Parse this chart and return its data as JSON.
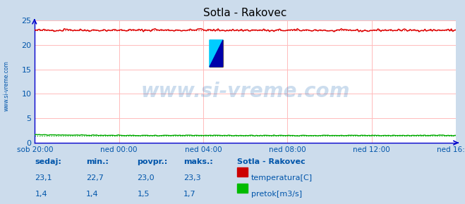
{
  "title": "Sotla - Rakovec",
  "bg_color": "#ccdcec",
  "plot_bg_color": "#ffffff",
  "grid_color": "#ffbbbb",
  "x_labels": [
    "sob 20:00",
    "ned 00:00",
    "ned 04:00",
    "ned 08:00",
    "ned 12:00",
    "ned 16:00"
  ],
  "x_ticks_norm": [
    0.0,
    0.2,
    0.4,
    0.6,
    0.8,
    1.0
  ],
  "ylim": [
    0,
    25
  ],
  "yticks": [
    0,
    5,
    10,
    15,
    20,
    25
  ],
  "temp_avg": 23.0,
  "temp_min": 22.7,
  "temp_max": 23.3,
  "flow_avg": 1.5,
  "flow_min": 1.4,
  "flow_max": 1.7,
  "temp_color": "#dd0000",
  "flow_color": "#00aa00",
  "axis_color": "#0000cc",
  "text_color": "#0055aa",
  "watermark": "www.si-vreme.com",
  "watermark_color": "#0055aa",
  "sidebar_text": "www.si-vreme.com",
  "legend_title": "Sotla - Rakovec",
  "legend_items": [
    "temperatura[C]",
    "pretok[m3/s]"
  ],
  "legend_colors": [
    "#cc0000",
    "#00bb00"
  ],
  "footer_labels": [
    "sedaj:",
    "min.:",
    "povpr.:",
    "maks.:"
  ],
  "footer_temp": [
    "23,1",
    "22,7",
    "23,0",
    "23,3"
  ],
  "footer_flow": [
    "1,4",
    "1,4",
    "1,5",
    "1,7"
  ],
  "n_points": 288,
  "temp_seed": 42,
  "flow_seed": 99
}
